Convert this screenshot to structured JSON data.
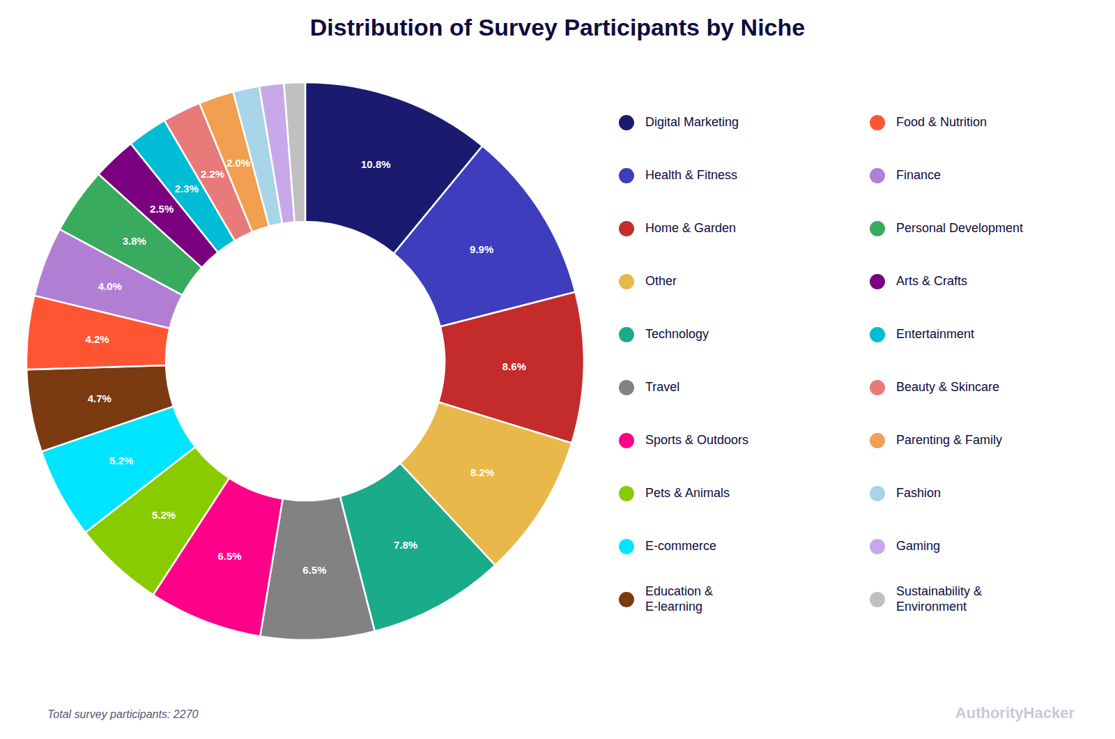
{
  "chart_data": {
    "type": "pie",
    "title": "Distribution of Survey Participants by Niche",
    "subtitle": "Total survey participants: 2270",
    "annotations": [
      "AuthorityHacker"
    ],
    "categories": [
      "Digital Marketing",
      "Health & Fitness",
      "Home & Garden",
      "Other",
      "Technology",
      "Travel",
      "Sports & Outdoors",
      "Pets & Animals",
      "E-commerce",
      "Education &\nE-learning",
      "Food & Nutrition",
      "Finance",
      "Personal Development",
      "Arts & Crafts",
      "Entertainment",
      "Beauty & Skincare",
      "Parenting & Family",
      "Fashion",
      "Gaming",
      "Sustainability &\nEnvironment"
    ],
    "values": [
      10.8,
      9.9,
      8.6,
      8.2,
      7.8,
      6.5,
      6.5,
      5.2,
      5.2,
      4.7,
      4.2,
      4.0,
      3.8,
      2.5,
      2.3,
      2.2,
      2.0,
      1.5,
      1.4,
      1.2
    ],
    "colors": [
      "#1a1a6e",
      "#3d3dbd",
      "#c42b2b",
      "#e8b84b",
      "#1aab8a",
      "#828282",
      "#ff0088",
      "#88cc00",
      "#00e5ff",
      "#7b3a10",
      "#ff5533",
      "#b07fd4",
      "#3aaa5e",
      "#7a0080",
      "#00bcd4",
      "#e87a7a",
      "#f0a050",
      "#a8d4e8",
      "#c8a8e8",
      "#c0c0c0"
    ],
    "data_labels": true,
    "value_labels": [
      "10.8%",
      "9.9%",
      "8.6%",
      "8.2%",
      "7.8%",
      "6.5%",
      "6.5%",
      "5.2%",
      "5.2%",
      "4.7%",
      "4.2%",
      "4.0%",
      "3.8%",
      "2.5%",
      "2.3%",
      "2.2%",
      "2.0%",
      null,
      null,
      null
    ],
    "legend": "right"
  }
}
